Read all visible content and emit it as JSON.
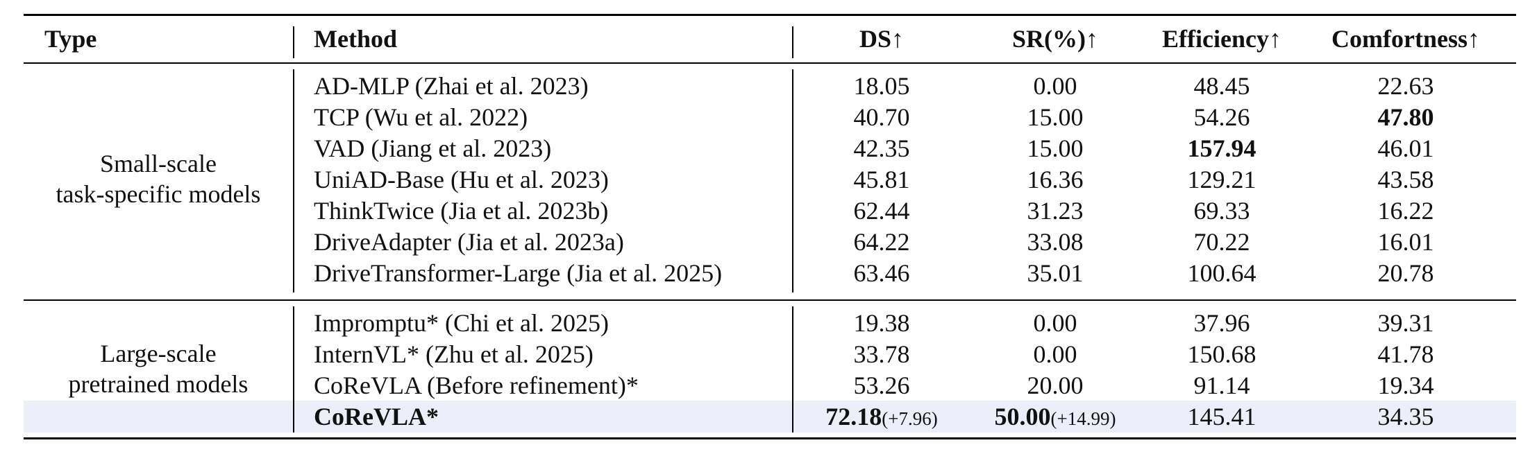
{
  "headers": {
    "type": "Type",
    "method": "Method",
    "ds": "DS↑",
    "sr": "SR(%)↑",
    "efficiency": "Efficiency↑",
    "comfortness": "Comfortness↑"
  },
  "groups": [
    {
      "type_lines": [
        "Small-scale",
        "task-specific models"
      ],
      "rows": [
        {
          "method": "AD-MLP (Zhai et al. 2023)",
          "ds": "18.05",
          "sr": "0.00",
          "efficiency": "48.45",
          "comfortness": "22.63"
        },
        {
          "method": "TCP (Wu et al. 2022)",
          "ds": "40.70",
          "sr": "15.00",
          "efficiency": "54.26",
          "comfortness": "47.80"
        },
        {
          "method": "VAD (Jiang et al. 2023)",
          "ds": "42.35",
          "sr": "15.00",
          "efficiency": "157.94",
          "comfortness": "46.01"
        },
        {
          "method": "UniAD-Base (Hu et al. 2023)",
          "ds": "45.81",
          "sr": "16.36",
          "efficiency": "129.21",
          "comfortness": "43.58"
        },
        {
          "method": "ThinkTwice (Jia et al. 2023b)",
          "ds": "62.44",
          "sr": "31.23",
          "efficiency": "69.33",
          "comfortness": "16.22"
        },
        {
          "method": "DriveAdapter (Jia et al. 2023a)",
          "ds": "64.22",
          "sr": "33.08",
          "efficiency": "70.22",
          "comfortness": "16.01"
        },
        {
          "method": "DriveTransformer-Large (Jia et al. 2025)",
          "ds": "63.46",
          "sr": "35.01",
          "efficiency": "100.64",
          "comfortness": "20.78"
        }
      ]
    },
    {
      "type_lines": [
        "Large-scale",
        "pretrained models"
      ],
      "rows": [
        {
          "method": "Impromptu* (Chi et al. 2025)",
          "ds": "19.38",
          "sr": "0.00",
          "efficiency": "37.96",
          "comfortness": "39.31"
        },
        {
          "method": "InternVL* (Zhu et al. 2025)",
          "ds": "33.78",
          "sr": "0.00",
          "efficiency": "150.68",
          "comfortness": "41.78"
        },
        {
          "method": "CoReVLA (Before refinement)*",
          "ds": "53.26",
          "sr": "20.00",
          "efficiency": "91.14",
          "comfortness": "19.34"
        },
        {
          "method": "CoReVLA*",
          "ds": "72.18",
          "ds_delta": "(+7.96)",
          "sr": "50.00",
          "sr_delta": "(+14.99)",
          "efficiency": "145.41",
          "comfortness": "34.35"
        }
      ]
    }
  ]
}
